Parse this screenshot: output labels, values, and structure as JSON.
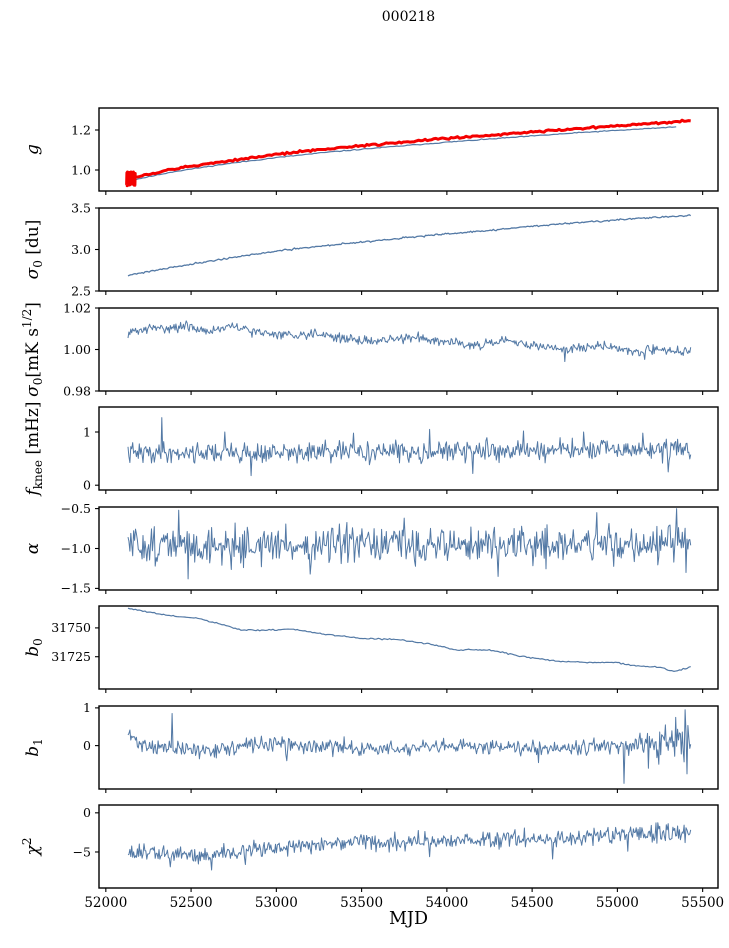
{
  "figure": {
    "title": "000218",
    "background": "#ffffff",
    "line_color": "#5379a5",
    "overlay_color": "#f40000",
    "axis_color": "#000000"
  },
  "chart_data": {
    "type": "line",
    "title": "000218",
    "xlabel": "MJD",
    "grid": false,
    "legend": "none",
    "xlim": [
      51960,
      55590
    ],
    "xticks": [
      52000,
      52500,
      53000,
      53500,
      54000,
      54500,
      55000,
      55500
    ],
    "xtick_labels": [
      "52000",
      "52500",
      "53000",
      "53500",
      "54000",
      "54500",
      "55000",
      "55500"
    ],
    "panels": [
      {
        "id": "g",
        "ylabel": [
          [
            "i",
            "g"
          ]
        ],
        "ylim": [
          0.895,
          1.31
        ],
        "yticks": [
          {
            "v": 1.0,
            "label": "1.0"
          },
          {
            "v": 1.2,
            "label": "1.2"
          }
        ],
        "series": [
          {
            "name": "g-fit-blue",
            "color": "#5379a5",
            "width": 1.2,
            "n": 260,
            "seed": 11,
            "x_start": 52130,
            "x_end": 55345,
            "noise": 0.0012,
            "trend": [
              [
                52130,
                0.945
              ],
              [
                52400,
                0.992
              ],
              [
                52700,
                1.03
              ],
              [
                53000,
                1.062
              ],
              [
                53300,
                1.089
              ],
              [
                53600,
                1.111
              ],
              [
                54000,
                1.139
              ],
              [
                54400,
                1.164
              ],
              [
                54800,
                1.188
              ],
              [
                55100,
                1.203
              ],
              [
                55345,
                1.216
              ]
            ]
          },
          {
            "name": "g-overlay-red",
            "color": "#f40000",
            "width": 3.0,
            "n": 260,
            "seed": 12,
            "x_start": 52150,
            "x_end": 55430,
            "noise": 0.0025,
            "burst": {
              "x0": 52122,
              "x1": 52172,
              "y_min": 0.921,
              "y_max": 0.992,
              "n": 30
            },
            "trend": [
              [
                52130,
                0.957
              ],
              [
                52400,
                1.005
              ],
              [
                52700,
                1.044
              ],
              [
                53000,
                1.078
              ],
              [
                53300,
                1.106
              ],
              [
                53600,
                1.129
              ],
              [
                54000,
                1.158
              ],
              [
                54400,
                1.184
              ],
              [
                54800,
                1.209
              ],
              [
                55100,
                1.226
              ],
              [
                55430,
                1.247
              ]
            ]
          }
        ]
      },
      {
        "id": "sigma0-du",
        "ylabel": [
          [
            "i",
            "σ"
          ],
          [
            "sub",
            "0"
          ],
          [
            "n",
            " [du]"
          ]
        ],
        "ylim": [
          2.5,
          3.5
        ],
        "yticks": [
          {
            "v": 2.5,
            "label": "2.5"
          },
          {
            "v": 3.0,
            "label": "3.0"
          },
          {
            "v": 3.5,
            "label": "3.5"
          }
        ],
        "series": [
          {
            "name": "sigma0-du",
            "color": "#5379a5",
            "width": 1.3,
            "n": 400,
            "seed": 21,
            "x_start": 52130,
            "x_end": 55430,
            "noise": 0.005,
            "trend": [
              [
                52130,
                2.69
              ],
              [
                52400,
                2.79
              ],
              [
                52700,
                2.89
              ],
              [
                53000,
                2.98
              ],
              [
                53300,
                3.05
              ],
              [
                53600,
                3.11
              ],
              [
                53900,
                3.17
              ],
              [
                54200,
                3.22
              ],
              [
                54500,
                3.28
              ],
              [
                54800,
                3.33
              ],
              [
                55100,
                3.37
              ],
              [
                55250,
                3.39
              ],
              [
                55430,
                3.41
              ]
            ]
          }
        ]
      },
      {
        "id": "sigma0-mks",
        "ylabel": [
          [
            "i",
            "σ"
          ],
          [
            "sub",
            "0"
          ],
          [
            "n",
            "[mK s"
          ],
          [
            "sup",
            "1/2"
          ],
          [
            "n",
            "]"
          ]
        ],
        "ylim": [
          0.98,
          1.02
        ],
        "yticks": [
          {
            "v": 0.98,
            "label": "0.98"
          },
          {
            "v": 1.0,
            "label": "1.00"
          },
          {
            "v": 1.02,
            "label": "1.02"
          }
        ],
        "series": [
          {
            "name": "sigma0-mks",
            "color": "#5379a5",
            "width": 1.0,
            "n": 600,
            "seed": 31,
            "x_start": 52130,
            "x_end": 55430,
            "noise": 0.0011,
            "trend": [
              [
                52130,
                1.008
              ],
              [
                52250,
                1.01
              ],
              [
                52450,
                1.011
              ],
              [
                52600,
                1.009
              ],
              [
                52750,
                1.011
              ],
              [
                52900,
                1.008
              ],
              [
                53100,
                1.007
              ],
              [
                53250,
                1.008
              ],
              [
                53400,
                1.005
              ],
              [
                53600,
                1.004
              ],
              [
                53800,
                1.006
              ],
              [
                54000,
                1.004
              ],
              [
                54200,
                1.002
              ],
              [
                54350,
                1.004
              ],
              [
                54500,
                1.002
              ],
              [
                54700,
                1.0
              ],
              [
                54900,
                1.002
              ],
              [
                55100,
                0.999
              ],
              [
                55250,
                1.0
              ],
              [
                55430,
                0.999
              ]
            ],
            "spikes": [
              [
                52470,
                1.0138
              ],
              [
                54690,
                0.9942
              ],
              [
                55160,
                0.9952
              ]
            ]
          }
        ]
      },
      {
        "id": "fknee",
        "ylabel": [
          [
            "i",
            "f"
          ],
          [
            "sub",
            "knee"
          ],
          [
            "n",
            " [mHz]"
          ]
        ],
        "ylim": [
          -0.09,
          1.47
        ],
        "yticks": [
          {
            "v": 0,
            "label": "0"
          },
          {
            "v": 1,
            "label": "1"
          }
        ],
        "series": [
          {
            "name": "fknee",
            "color": "#5379a5",
            "width": 1.0,
            "n": 600,
            "seed": 41,
            "x_start": 52130,
            "x_end": 55430,
            "noise": 0.095,
            "trend": [
              [
                52130,
                0.6
              ],
              [
                52600,
                0.62
              ],
              [
                53000,
                0.6
              ],
              [
                53500,
                0.63
              ],
              [
                54000,
                0.63
              ],
              [
                54500,
                0.66
              ],
              [
                55000,
                0.66
              ],
              [
                55430,
                0.68
              ]
            ],
            "spikes": [
              [
                52330,
                1.27
              ],
              [
                52700,
                1.0
              ],
              [
                53450,
                0.98
              ],
              [
                53900,
                1.05
              ],
              [
                54450,
                1.02
              ],
              [
                54800,
                1.0
              ],
              [
                55150,
                0.98
              ],
              [
                52850,
                0.18
              ],
              [
                54150,
                0.22
              ],
              [
                55300,
                0.25
              ]
            ]
          }
        ]
      },
      {
        "id": "alpha",
        "ylabel": [
          [
            "i",
            "α"
          ]
        ],
        "ylim": [
          -1.52,
          -0.48
        ],
        "yticks": [
          {
            "v": -0.5,
            "label": "−0.5"
          },
          {
            "v": -1.0,
            "label": "−1.0"
          },
          {
            "v": -1.5,
            "label": "−1.5"
          }
        ],
        "series": [
          {
            "name": "alpha",
            "color": "#5379a5",
            "width": 1.0,
            "n": 600,
            "seed": 51,
            "x_start": 52130,
            "x_end": 55430,
            "noise": 0.115,
            "trend": [
              [
                52130,
                -0.95
              ],
              [
                52600,
                -0.97
              ],
              [
                53000,
                -0.96
              ],
              [
                53500,
                -0.97
              ],
              [
                54000,
                -0.95
              ],
              [
                54500,
                -0.96
              ],
              [
                55000,
                -0.94
              ],
              [
                55430,
                -0.95
              ]
            ],
            "spikes": [
              [
                52430,
                -0.52
              ],
              [
                52480,
                -1.38
              ],
              [
                53200,
                -1.32
              ],
              [
                53750,
                -0.62
              ],
              [
                54300,
                -1.35
              ],
              [
                54880,
                -0.55
              ],
              [
                55350,
                -0.5
              ],
              [
                55400,
                -1.3
              ]
            ]
          }
        ]
      },
      {
        "id": "b0",
        "ylabel": [
          [
            "i",
            "b"
          ],
          [
            "sub",
            "0"
          ]
        ],
        "ylim": [
          31697,
          31769
        ],
        "yticks": [
          {
            "v": 31750,
            "label": "31750"
          },
          {
            "v": 31725,
            "label": "31725"
          }
        ],
        "series": [
          {
            "name": "b0",
            "color": "#5379a5",
            "width": 1.2,
            "n": 300,
            "seed": 61,
            "x_start": 52130,
            "x_end": 55430,
            "noise": 0.3,
            "trend": [
              [
                52130,
                31767
              ],
              [
                52350,
                31761
              ],
              [
                52550,
                31758
              ],
              [
                52800,
                31748
              ],
              [
                52950,
                31748
              ],
              [
                53100,
                31749
              ],
              [
                53300,
                31744
              ],
              [
                53500,
                31741
              ],
              [
                53700,
                31740
              ],
              [
                53900,
                31736
              ],
              [
                54050,
                31731
              ],
              [
                54250,
                31731
              ],
              [
                54450,
                31725
              ],
              [
                54650,
                31721
              ],
              [
                54850,
                31720
              ],
              [
                55000,
                31720
              ],
              [
                55100,
                31717
              ],
              [
                55250,
                31716
              ],
              [
                55330,
                31712
              ],
              [
                55430,
                31716
              ]
            ]
          }
        ]
      },
      {
        "id": "b1",
        "ylabel": [
          [
            "i",
            "b"
          ],
          [
            "sub",
            "1"
          ]
        ],
        "ylim": [
          -1.15,
          1.05
        ],
        "yticks": [
          {
            "v": 1,
            "label": "1"
          },
          {
            "v": 0,
            "label": "0"
          }
        ],
        "series": [
          {
            "name": "b1",
            "color": "#5379a5",
            "width": 1.0,
            "n": 600,
            "seed": 71,
            "x_start": 52130,
            "x_end": 55430,
            "noise": 0.1,
            "noise_ramp": [
              55000,
              2.6
            ],
            "trend": [
              [
                52130,
                0.3
              ],
              [
                52200,
                0.05
              ],
              [
                52400,
                -0.1
              ],
              [
                52700,
                -0.1
              ],
              [
                52900,
                0.05
              ],
              [
                53100,
                0.0
              ],
              [
                53400,
                -0.05
              ],
              [
                53700,
                -0.1
              ],
              [
                54000,
                -0.05
              ],
              [
                54300,
                0.0
              ],
              [
                54600,
                -0.05
              ],
              [
                54900,
                0.0
              ],
              [
                55100,
                -0.05
              ],
              [
                55430,
                0.05
              ]
            ],
            "spikes": [
              [
                52390,
                0.85
              ],
              [
                52550,
                -0.35
              ],
              [
                53060,
                -0.4
              ],
              [
                54540,
                -0.45
              ],
              [
                55040,
                -1.0
              ],
              [
                55180,
                -0.6
              ],
              [
                55280,
                0.55
              ],
              [
                55340,
                0.75
              ],
              [
                55395,
                0.95
              ],
              [
                55410,
                -0.75
              ]
            ]
          }
        ]
      },
      {
        "id": "chi2",
        "ylabel": [
          [
            "i",
            "χ"
          ],
          [
            "sup",
            "2"
          ]
        ],
        "ylim": [
          -9.6,
          1.0
        ],
        "yticks": [
          {
            "v": 0,
            "label": "0"
          },
          {
            "v": -5,
            "label": "−5"
          }
        ],
        "series": [
          {
            "name": "chi2",
            "color": "#5379a5",
            "width": 1.0,
            "n": 600,
            "seed": 81,
            "x_start": 52130,
            "x_end": 55430,
            "noise": 0.55,
            "trend": [
              [
                52130,
                -5.0
              ],
              [
                52300,
                -5.2
              ],
              [
                52500,
                -5.4
              ],
              [
                52700,
                -5.2
              ],
              [
                52900,
                -4.6
              ],
              [
                53100,
                -4.2
              ],
              [
                53400,
                -3.9
              ],
              [
                53700,
                -3.7
              ],
              [
                54000,
                -3.5
              ],
              [
                54300,
                -3.4
              ],
              [
                54600,
                -3.3
              ],
              [
                54900,
                -3.0
              ],
              [
                55100,
                -2.8
              ],
              [
                55250,
                -2.5
              ],
              [
                55430,
                -2.7
              ]
            ],
            "spikes": [
              [
                52380,
                -6.9
              ],
              [
                52620,
                -7.3
              ],
              [
                52820,
                -6.6
              ],
              [
                53900,
                -5.6
              ],
              [
                54620,
                -5.9
              ],
              [
                55060,
                -4.9
              ],
              [
                55200,
                -1.6
              ]
            ]
          }
        ]
      }
    ]
  }
}
